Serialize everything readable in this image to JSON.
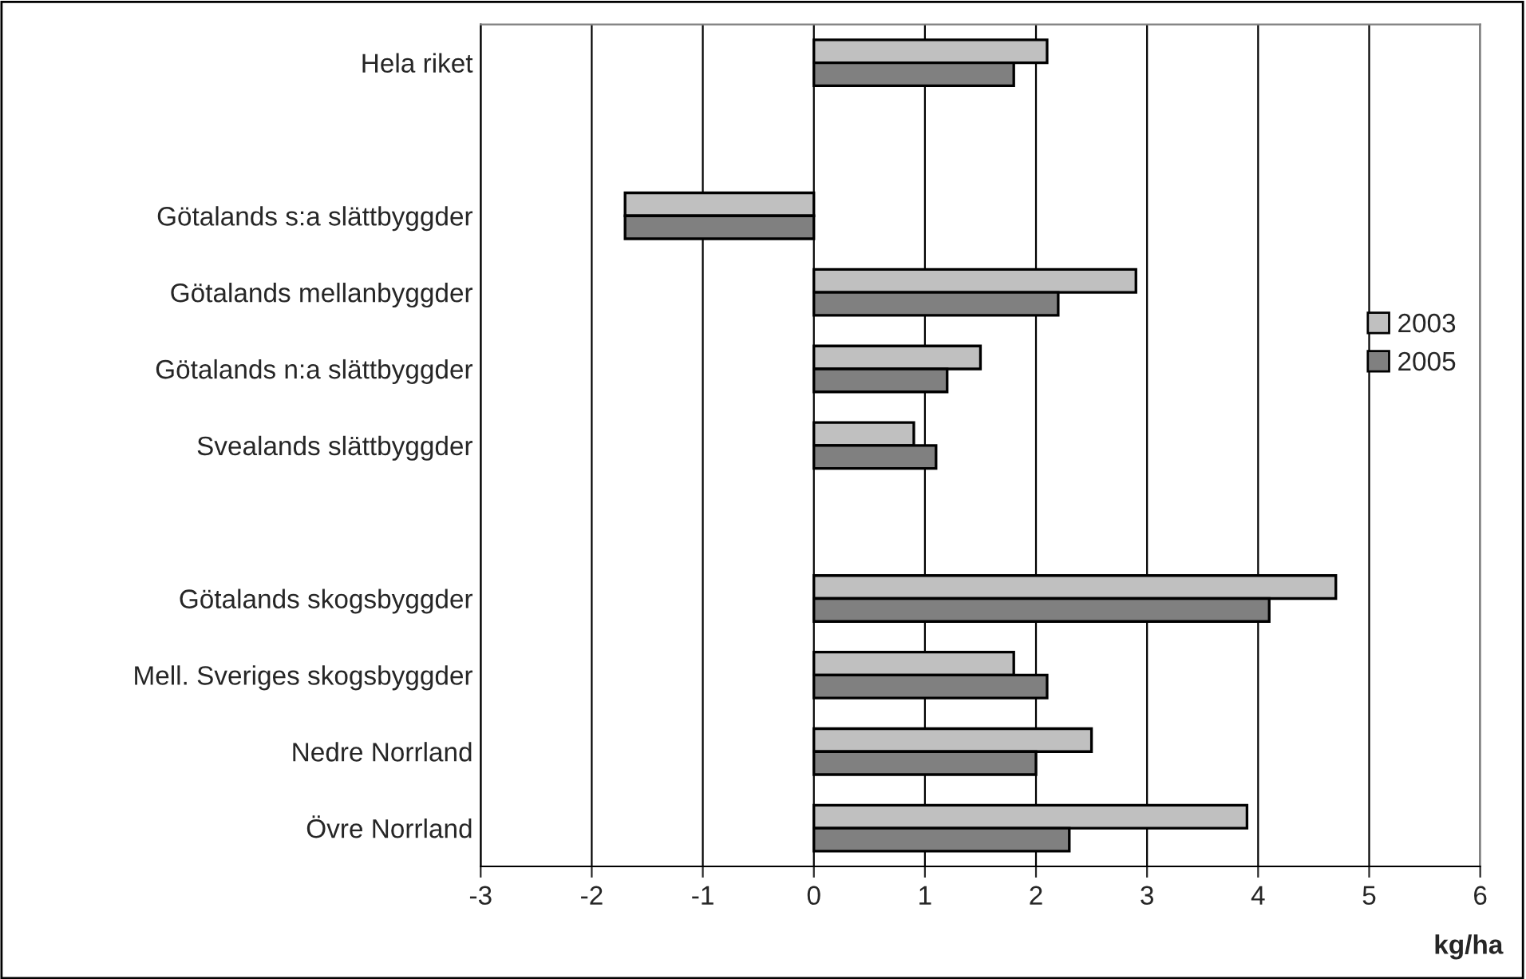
{
  "chart_data": {
    "type": "bar",
    "orientation": "horizontal",
    "xlabel": "kg/ha",
    "categories": [
      "Hela riket",
      null,
      "Götalands s:a slättbyggder",
      "Götalands mellanbyggder",
      "Götalands n:a slättbyggder",
      "Svealands slättbyggder",
      null,
      "Götalands skogsbyggder",
      "Mell. Sveriges skogsbyggder",
      "Nedre Norrland",
      "Övre Norrland"
    ],
    "series": [
      {
        "name": "2003",
        "color": "#c0c0c0",
        "values": [
          2.1,
          null,
          -1.7,
          2.9,
          1.5,
          0.9,
          null,
          4.7,
          1.8,
          2.5,
          3.9
        ]
      },
      {
        "name": "2005",
        "color": "#808080",
        "values": [
          1.8,
          null,
          -1.7,
          2.2,
          1.2,
          1.1,
          null,
          4.1,
          2.1,
          2.0,
          2.3
        ]
      }
    ],
    "xlim": [
      -3,
      6
    ],
    "xticks": [
      -3,
      -2,
      -1,
      0,
      1,
      2,
      3,
      4,
      5,
      6
    ],
    "grid": "x",
    "legend": "right"
  }
}
